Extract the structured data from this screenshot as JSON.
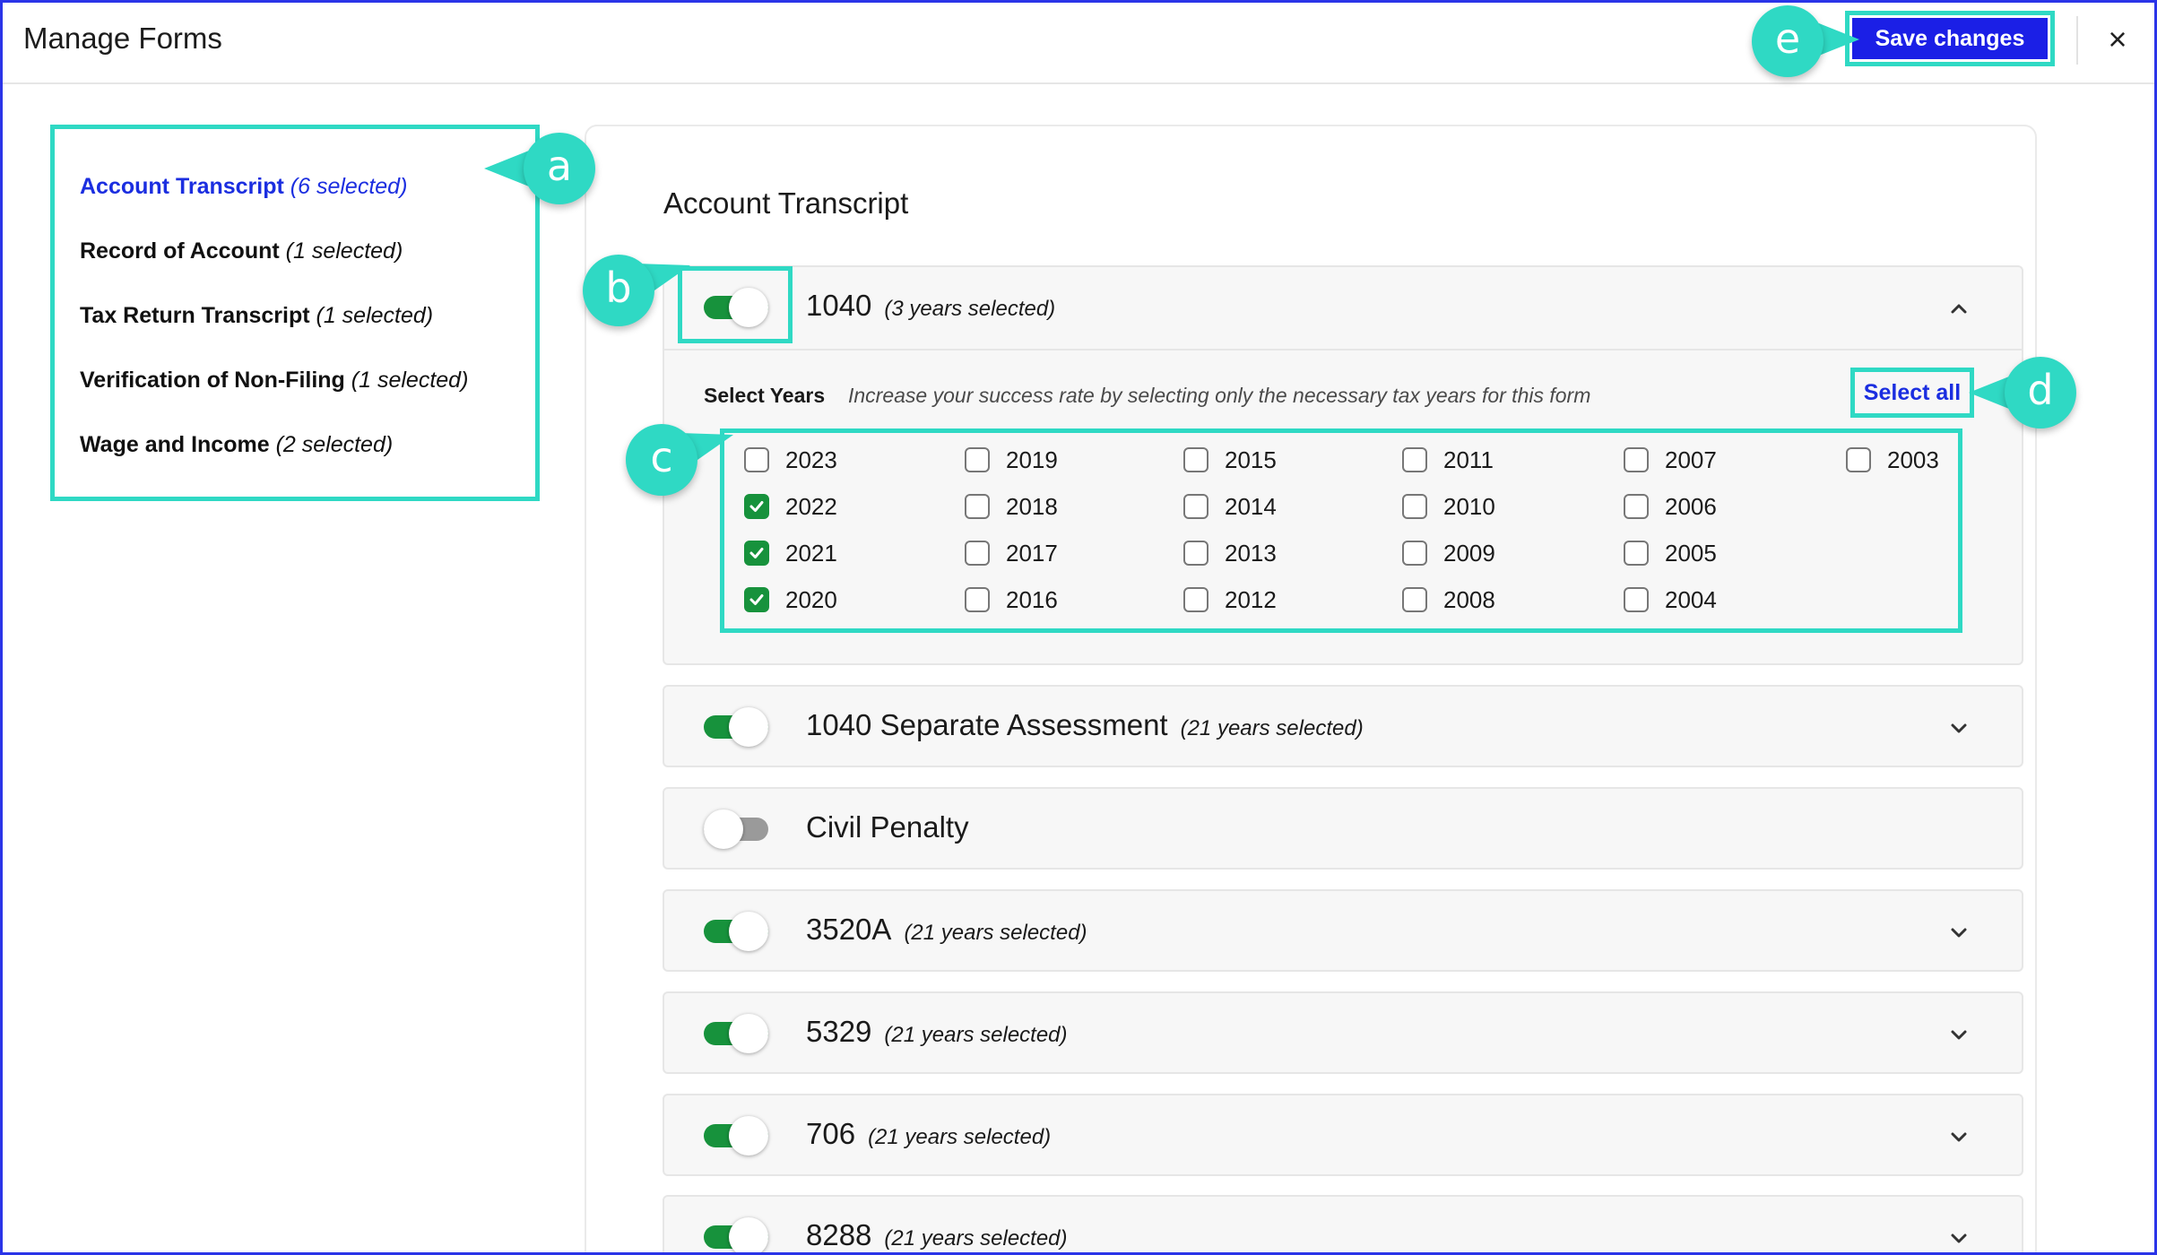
{
  "header": {
    "title": "Manage Forms",
    "save_label": "Save changes",
    "close_glyph": "×"
  },
  "nav": {
    "items": [
      {
        "label": "Account Transcript",
        "count": "(6 selected)",
        "active": true
      },
      {
        "label": "Record of Account",
        "count": "(1 selected)"
      },
      {
        "label": "Tax Return Transcript",
        "count": "(1 selected)"
      },
      {
        "label": "Verification of Non-Filing",
        "count": "(1 selected)"
      },
      {
        "label": "Wage and Income",
        "count": "(2 selected)"
      }
    ]
  },
  "panel": {
    "title": "Account Transcript",
    "expanded_form": {
      "name": "1040",
      "years_selected": "(3 years selected)",
      "enabled": true,
      "select_years_label": "Select Years",
      "select_years_help": "Increase your success rate by selecting only the necessary tax years for this form",
      "select_all_label": "Select all",
      "years": [
        {
          "year": "2023",
          "checked": false
        },
        {
          "year": "2022",
          "checked": true
        },
        {
          "year": "2021",
          "checked": true
        },
        {
          "year": "2020",
          "checked": true
        },
        {
          "year": "2019",
          "checked": false
        },
        {
          "year": "2018",
          "checked": false
        },
        {
          "year": "2017",
          "checked": false
        },
        {
          "year": "2016",
          "checked": false
        },
        {
          "year": "2015",
          "checked": false
        },
        {
          "year": "2014",
          "checked": false
        },
        {
          "year": "2013",
          "checked": false
        },
        {
          "year": "2012",
          "checked": false
        },
        {
          "year": "2011",
          "checked": false
        },
        {
          "year": "2010",
          "checked": false
        },
        {
          "year": "2009",
          "checked": false
        },
        {
          "year": "2008",
          "checked": false
        },
        {
          "year": "2007",
          "checked": false
        },
        {
          "year": "2006",
          "checked": false
        },
        {
          "year": "2005",
          "checked": false
        },
        {
          "year": "2004",
          "checked": false
        },
        {
          "year": "2003",
          "checked": false
        }
      ]
    },
    "forms": [
      {
        "name": "1040 Separate Assessment",
        "years_selected": "(21 years selected)",
        "enabled": true,
        "chevron": true
      },
      {
        "name": "Civil Penalty",
        "years_selected": "",
        "enabled": false,
        "chevron": false
      },
      {
        "name": "3520A",
        "years_selected": "(21 years selected)",
        "enabled": true,
        "chevron": true
      },
      {
        "name": "5329",
        "years_selected": "(21 years selected)",
        "enabled": true,
        "chevron": true
      },
      {
        "name": "706",
        "years_selected": "(21 years selected)",
        "enabled": true,
        "chevron": true
      },
      {
        "name": "8288",
        "years_selected": "(21 years selected)",
        "enabled": true,
        "chevron": true
      }
    ]
  },
  "callouts": {
    "a": "a",
    "b": "b",
    "c": "c",
    "d": "d",
    "e": "e"
  },
  "colors": {
    "accent_blue": "#1b1fe6",
    "highlight_teal": "#2fd9c4",
    "toggle_green": "#17923c"
  }
}
